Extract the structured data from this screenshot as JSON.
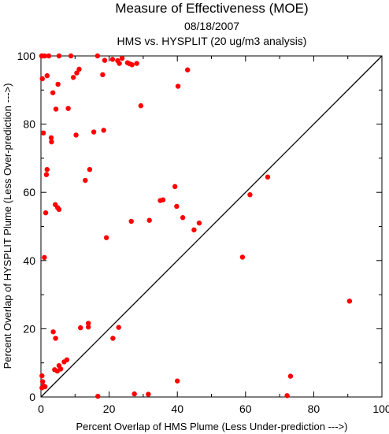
{
  "chart_data": {
    "type": "scatter",
    "title": "Measure of Effectiveness (MOE)",
    "subtitle_lines": [
      "08/18/2007",
      "HMS vs. HYSPLIT  (20 ug/m3 analysis)"
    ],
    "xlabel": "Percent Overlap of HMS Plume (Less Under-prediction --->)",
    "ylabel": "Percent Overlap of HYSPLIT Plume (Less Over-prediction --->)",
    "xlim": [
      0,
      100
    ],
    "ylim": [
      0,
      100
    ],
    "x_ticks": [
      0,
      20,
      40,
      60,
      80,
      100
    ],
    "y_ticks": [
      0,
      20,
      40,
      60,
      80,
      100
    ],
    "x_tick_labels": [
      "0",
      "20",
      "40",
      "60",
      "80",
      "100"
    ],
    "y_tick_labels": [
      "0",
      "20",
      "40",
      "60",
      "80",
      "100"
    ],
    "grid": false,
    "reference_line": [
      [
        0,
        0
      ],
      [
        100,
        100
      ]
    ],
    "marker_color": "#ff0000",
    "line_color": "#000000",
    "points": [
      [
        0.2,
        100
      ],
      [
        0.5,
        100
      ],
      [
        1.1,
        100
      ],
      [
        2.3,
        100
      ],
      [
        5.3,
        100
      ],
      [
        8.8,
        100
      ],
      [
        16.6,
        100
      ],
      [
        0.4,
        93.3
      ],
      [
        1.8,
        94.2
      ],
      [
        5.0,
        91.7
      ],
      [
        9.5,
        93.7
      ],
      [
        10.5,
        95.0
      ],
      [
        11.2,
        96.1
      ],
      [
        18.1,
        94.5
      ],
      [
        18.7,
        98.7
      ],
      [
        21.0,
        99.0
      ],
      [
        22.5,
        98.6
      ],
      [
        23.0,
        97.8
      ],
      [
        23.8,
        99.3
      ],
      [
        25.4,
        98.0
      ],
      [
        26.0,
        97.7
      ],
      [
        26.7,
        97.4
      ],
      [
        28.1,
        97.8
      ],
      [
        43.0,
        95.9
      ],
      [
        40.2,
        91.1
      ],
      [
        3.5,
        89.2
      ],
      [
        4.4,
        84.4
      ],
      [
        8.0,
        84.6
      ],
      [
        29.3,
        85.4
      ],
      [
        0.7,
        77.4
      ],
      [
        3.0,
        76.0
      ],
      [
        3.1,
        74.8
      ],
      [
        10.3,
        76.8
      ],
      [
        15.5,
        77.7
      ],
      [
        18.4,
        78.2
      ],
      [
        1.8,
        66.7
      ],
      [
        1.6,
        65.2
      ],
      [
        14.3,
        66.7
      ],
      [
        13.0,
        63.5
      ],
      [
        4.2,
        56.4
      ],
      [
        4.9,
        55.5
      ],
      [
        5.3,
        55.0
      ],
      [
        1.4,
        54.0
      ],
      [
        19.2,
        46.7
      ],
      [
        26.5,
        51.5
      ],
      [
        31.8,
        51.8
      ],
      [
        35.0,
        57.6
      ],
      [
        35.8,
        57.8
      ],
      [
        39.3,
        61.7
      ],
      [
        39.8,
        55.9
      ],
      [
        41.6,
        52.6
      ],
      [
        44.9,
        49.0
      ],
      [
        46.4,
        51.0
      ],
      [
        61.3,
        59.3
      ],
      [
        66.5,
        64.5
      ],
      [
        1.0,
        40.9
      ],
      [
        59.1,
        41.0
      ],
      [
        90.5,
        28.1
      ],
      [
        3.6,
        19.1
      ],
      [
        4.3,
        17.2
      ],
      [
        11.6,
        20.3
      ],
      [
        13.9,
        20.5
      ],
      [
        13.9,
        21.6
      ],
      [
        21.1,
        17.2
      ],
      [
        22.8,
        20.4
      ],
      [
        0.3,
        6.2
      ],
      [
        0.5,
        4.5
      ],
      [
        0.8,
        3.2
      ],
      [
        0.3,
        2.7
      ],
      [
        1.2,
        3.0
      ],
      [
        4.0,
        8.0
      ],
      [
        4.8,
        7.6
      ],
      [
        5.3,
        9.2
      ],
      [
        5.8,
        8.2
      ],
      [
        6.8,
        10.3
      ],
      [
        7.6,
        10.9
      ],
      [
        16.7,
        0.2
      ],
      [
        27.4,
        0.9
      ],
      [
        31.5,
        0.8
      ],
      [
        40.0,
        4.7
      ],
      [
        72.2,
        0.4
      ],
      [
        73.2,
        6.1
      ]
    ]
  }
}
